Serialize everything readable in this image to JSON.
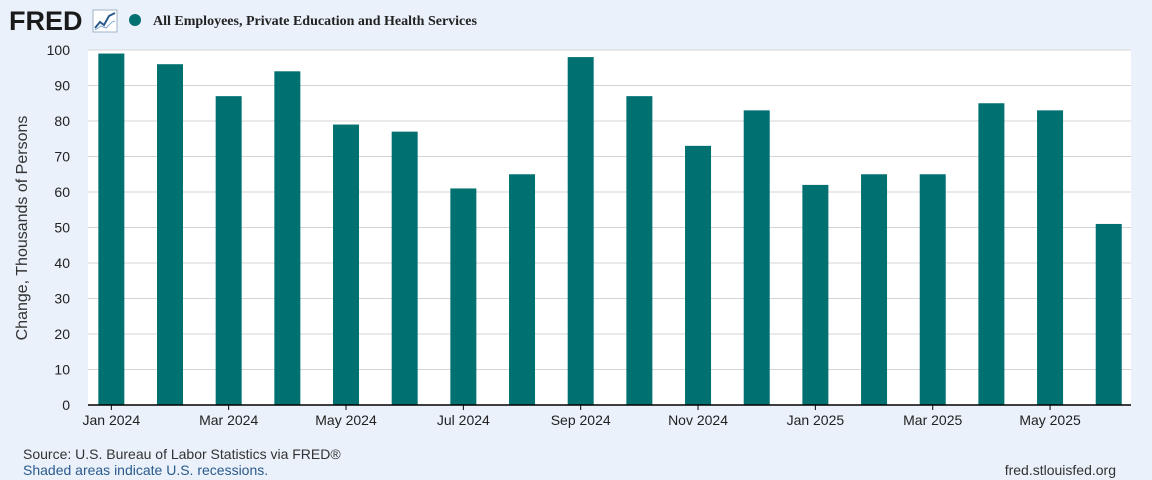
{
  "brand": {
    "logo_text": "FRED",
    "logo_icon": "trend-line-icon"
  },
  "colors": {
    "bar": "#007170",
    "background": "#eaf1fa",
    "plot_bg": "#ffffff",
    "grid": "#d4d4d4",
    "link": "#2b5a8c"
  },
  "chart_data": {
    "type": "bar",
    "title": "All Employees, Private Education and Health Services",
    "ylabel": "Change, Thousands of Persons",
    "xlabel": "",
    "ylim": [
      0,
      100
    ],
    "yticks": [
      0,
      10,
      20,
      30,
      40,
      50,
      60,
      70,
      80,
      90,
      100
    ],
    "categories": [
      "Jan 2024",
      "Feb 2024",
      "Mar 2024",
      "Apr 2024",
      "May 2024",
      "Jun 2024",
      "Jul 2024",
      "Aug 2024",
      "Sep 2024",
      "Oct 2024",
      "Nov 2024",
      "Dec 2024",
      "Jan 2025",
      "Feb 2025",
      "Mar 2025",
      "Apr 2025",
      "May 2025",
      "Jun 2025"
    ],
    "xtick_labels": [
      "Jan 2024",
      "Mar 2024",
      "May 2024",
      "Jul 2024",
      "Sep 2024",
      "Nov 2024",
      "Jan 2025",
      "Mar 2025",
      "May 2025"
    ],
    "values": [
      99,
      96,
      87,
      94,
      79,
      77,
      61,
      65,
      98,
      87,
      73,
      83,
      62,
      65,
      65,
      85,
      83,
      51
    ],
    "legend": [
      "All Employees, Private Education and Health Services"
    ]
  },
  "footer": {
    "source": "Source: U.S. Bureau of Labor Statistics via FRED®",
    "recession_note": "Shaded areas indicate U.S. recessions.",
    "site": "fred.stlouisfed.org"
  }
}
